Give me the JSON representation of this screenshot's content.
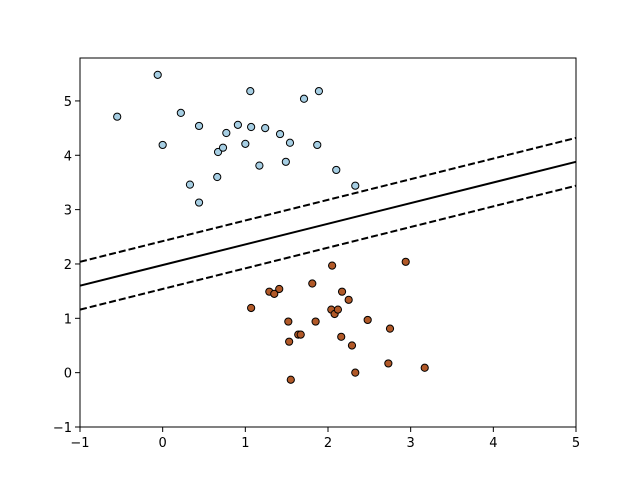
{
  "chart_data": {
    "type": "scatter",
    "xlim": [
      -1,
      5
    ],
    "ylim": [
      -1,
      5.79
    ],
    "xticks": [
      {
        "value": -1,
        "label": "−1"
      },
      0,
      1,
      2,
      3,
      4,
      5
    ],
    "yticks": [
      {
        "value": -1,
        "label": "−1"
      },
      0,
      1,
      2,
      3,
      4,
      5
    ],
    "series": [
      {
        "color": "#a6cee3",
        "x": [
          -0.06,
          -0.55,
          0.0,
          0.22,
          0.44,
          0.33,
          0.44,
          0.67,
          0.73,
          0.77,
          0.66,
          0.91,
          1.0,
          1.06,
          1.07,
          1.17,
          1.24,
          1.42,
          1.49,
          1.54,
          1.71,
          1.89,
          1.87,
          2.1,
          2.33
        ],
        "values": [
          5.48,
          4.71,
          4.19,
          4.78,
          4.54,
          3.46,
          3.13,
          4.06,
          4.14,
          4.41,
          3.6,
          4.56,
          4.21,
          5.18,
          4.52,
          3.81,
          4.5,
          4.39,
          3.88,
          4.23,
          5.04,
          5.18,
          4.19,
          3.73,
          3.44
        ]
      },
      {
        "color": "#b15928",
        "x": [
          1.07,
          1.29,
          1.35,
          1.41,
          1.52,
          1.53,
          1.55,
          1.64,
          1.67,
          1.81,
          1.85,
          2.05,
          2.04,
          2.08,
          2.12,
          2.17,
          2.16,
          2.25,
          2.29,
          2.33,
          2.48,
          2.75,
          2.73,
          2.94,
          3.17
        ],
        "values": [
          1.19,
          1.49,
          1.45,
          1.54,
          0.94,
          0.57,
          -0.13,
          0.7,
          0.7,
          1.64,
          0.94,
          1.97,
          1.16,
          1.08,
          1.16,
          1.49,
          0.66,
          1.34,
          0.5,
          0.0,
          0.97,
          0.81,
          0.17,
          2.04,
          0.09
        ]
      }
    ],
    "lines": [
      {
        "x": [
          -1,
          5
        ],
        "values": [
          2.04,
          4.32
        ],
        "color": "#000000",
        "dashed": true
      },
      {
        "x": [
          -1,
          5
        ],
        "values": [
          1.6,
          3.88
        ],
        "color": "#000000",
        "dashed": false
      },
      {
        "x": [
          -1,
          5
        ],
        "values": [
          1.16,
          3.44
        ],
        "color": "#000000",
        "dashed": true
      }
    ]
  }
}
